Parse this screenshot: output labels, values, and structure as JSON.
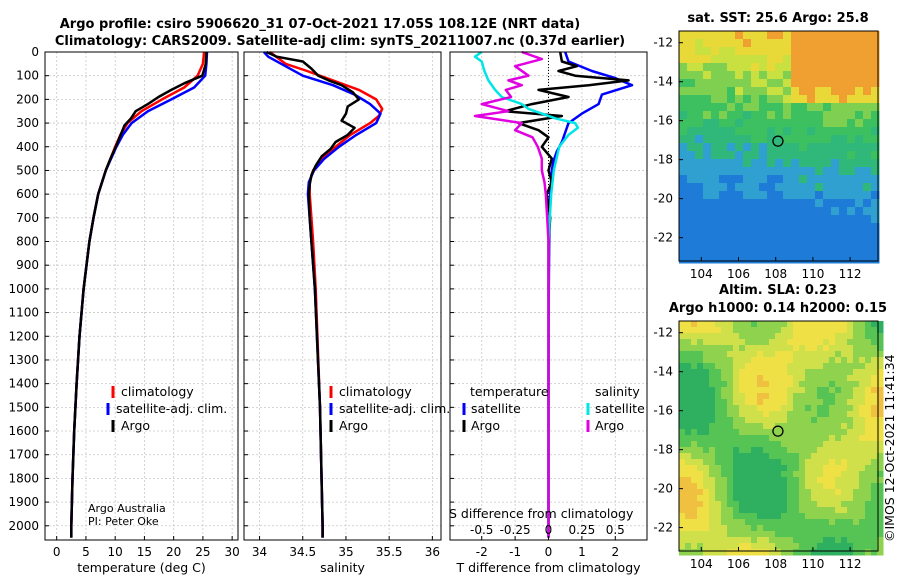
{
  "header": {
    "title_line1": "Argo profile: csiro 5906620_31 07-Oct-2021 17.05S 108.12E (NRT data)",
    "title_line2": "Climatology: CARS2009. Satellite-adj clim: synTS_20211007.nc (0.37d earlier)"
  },
  "colors": {
    "climatology": "#ff0000",
    "satellite": "#0000ff",
    "argo": "#000000",
    "salinity_satellite": "#00e5e5",
    "salinity_argo": "#e000e0"
  },
  "credits": {
    "line1": "Argo Australia",
    "line2": "PI: Peter Oke"
  },
  "watermark": "©IMOS 12-Oct-2021 11:41:34",
  "depth_ticks": [
    0,
    100,
    200,
    300,
    400,
    500,
    600,
    700,
    800,
    900,
    1000,
    1100,
    1200,
    1300,
    1400,
    1500,
    1600,
    1700,
    1800,
    1900,
    2000
  ],
  "chart_data": [
    {
      "type": "line",
      "xlabel": "temperature (deg C)",
      "xticks": [
        0,
        5,
        10,
        15,
        20,
        25,
        30
      ],
      "xlim": [
        -2,
        31
      ],
      "ylim": [
        2060,
        0
      ],
      "legend": [
        "climatology",
        "satellite-adj. clim.",
        "Argo"
      ],
      "series": [
        {
          "name": "climatology",
          "color": "#ff0000",
          "depth": [
            0,
            50,
            100,
            150,
            200,
            250,
            300,
            350,
            400,
            500,
            600,
            700,
            800,
            1000,
            1200,
            1400,
            1600,
            1800,
            2000,
            2050
          ],
          "values": [
            25.2,
            25.0,
            24.1,
            21.8,
            18.0,
            14.5,
            12.1,
            10.9,
            10.0,
            8.4,
            7.1,
            6.3,
            5.6,
            4.6,
            3.9,
            3.4,
            3.0,
            2.7,
            2.5,
            2.5
          ]
        },
        {
          "name": "satellite-adj. clim.",
          "color": "#0000ff",
          "depth": [
            0,
            50,
            100,
            150,
            200,
            250,
            300,
            350,
            400,
            500,
            600,
            700,
            800,
            1000,
            1200,
            1400,
            1600,
            1800,
            2000,
            2050
          ],
          "values": [
            25.7,
            25.6,
            25.4,
            23.5,
            19.6,
            15.6,
            12.8,
            11.3,
            10.2,
            8.4,
            7.1,
            6.3,
            5.6,
            4.6,
            3.9,
            3.4,
            3.0,
            2.7,
            2.5,
            2.5
          ]
        },
        {
          "name": "Argo",
          "color": "#000000",
          "depth": [
            0,
            50,
            100,
            130,
            160,
            190,
            220,
            250,
            280,
            310,
            340,
            370,
            400,
            450,
            500,
            600,
            700,
            800,
            1000,
            1200,
            1400,
            1600,
            1800,
            2000,
            2050
          ],
          "values": [
            25.6,
            25.5,
            24.9,
            22.0,
            19.6,
            17.4,
            15.6,
            13.5,
            12.7,
            11.6,
            11.1,
            10.6,
            10.1,
            9.2,
            8.4,
            7.1,
            6.3,
            5.6,
            4.6,
            3.9,
            3.4,
            3.0,
            2.7,
            2.5,
            2.5
          ]
        }
      ]
    },
    {
      "type": "line",
      "xlabel": "salinity",
      "xticks": [
        34,
        34.5,
        35,
        35.5,
        36
      ],
      "xlim": [
        33.82,
        36.1
      ],
      "ylim": [
        2060,
        0
      ],
      "legend": [
        "climatology",
        "satellite-adj. clim.",
        "Argo"
      ],
      "series": [
        {
          "name": "climatology",
          "color": "#ff0000",
          "depth": [
            0,
            50,
            80,
            120,
            160,
            200,
            240,
            270,
            300,
            350,
            400,
            450,
            500,
            550,
            600,
            700,
            800,
            1000,
            1500,
            2000,
            2050
          ],
          "values": [
            34.12,
            34.3,
            34.55,
            34.85,
            35.15,
            35.35,
            35.42,
            35.38,
            35.28,
            35.05,
            34.88,
            34.72,
            34.62,
            34.58,
            34.58,
            34.6,
            34.62,
            34.65,
            34.7,
            34.73,
            34.73
          ]
        },
        {
          "name": "satellite-adj. clim.",
          "color": "#0000ff",
          "depth": [
            0,
            20,
            60,
            100,
            140,
            180,
            220,
            260,
            300,
            350,
            400,
            450,
            500,
            550,
            600,
            700,
            800,
            1000,
            1500,
            2000,
            2050
          ],
          "values": [
            34.05,
            34.1,
            34.3,
            34.5,
            34.85,
            35.1,
            35.28,
            35.4,
            35.35,
            35.12,
            34.92,
            34.75,
            34.63,
            34.57,
            34.56,
            34.58,
            34.6,
            34.64,
            34.7,
            34.73,
            34.73
          ]
        },
        {
          "name": "Argo",
          "color": "#000000",
          "depth": [
            0,
            20,
            40,
            70,
            100,
            120,
            140,
            170,
            200,
            230,
            260,
            290,
            320,
            350,
            380,
            410,
            440,
            480,
            520,
            560,
            600,
            700,
            800,
            1000,
            1500,
            2000,
            2050
          ],
          "values": [
            34.08,
            34.2,
            34.5,
            34.6,
            34.68,
            34.8,
            34.95,
            35.08,
            35.15,
            35.02,
            35.0,
            34.95,
            35.1,
            35.02,
            34.88,
            34.82,
            34.72,
            34.65,
            34.6,
            34.58,
            34.57,
            34.58,
            34.6,
            34.64,
            34.7,
            34.73,
            34.73
          ]
        }
      ]
    },
    {
      "type": "line",
      "xlabel": "T difference from climatology",
      "xlabel_top": "S difference from climatology",
      "xticks": [
        -2,
        -1,
        0,
        1,
        2
      ],
      "xlim": [
        -2.95,
        2.95
      ],
      "s_ticks": [
        -0.5,
        -0.25,
        0,
        0.25,
        0.5
      ],
      "s_tick_labels": [
        "-0.5",
        "-0.25",
        "0",
        "0.25",
        "0.5"
      ],
      "ylim": [
        2060,
        0
      ],
      "legend_group1": "temperature",
      "legend_group2": "salinity",
      "legend": [
        "satellite",
        "Argo",
        "satellite",
        "Argo"
      ],
      "series": [
        {
          "name": "T satellite",
          "color": "#0000ff",
          "depth": [
            0,
            40,
            80,
            110,
            140,
            180,
            220,
            260,
            300,
            340,
            380,
            420,
            460,
            500,
            600,
            800,
            1000,
            1500,
            2000,
            2050
          ],
          "values": [
            0.5,
            0.6,
            1.3,
            2.0,
            2.5,
            1.6,
            1.5,
            1.0,
            0.6,
            0.5,
            0.4,
            0.25,
            0.15,
            0.1,
            0.05,
            0.02,
            0.01,
            0.0,
            0.0,
            0.0
          ]
        },
        {
          "name": "T Argo",
          "color": "#000000",
          "depth": [
            0,
            40,
            60,
            80,
            100,
            120,
            140,
            160,
            190,
            220,
            250,
            270,
            300,
            330,
            360,
            400,
            450,
            500,
            550,
            600,
            650,
            700,
            800,
            1000,
            1500,
            2000,
            2050
          ],
          "values": [
            0.35,
            0.4,
            0.85,
            0.3,
            0.8,
            2.4,
            1.2,
            -0.3,
            0.6,
            -0.5,
            -1.3,
            0.4,
            -0.9,
            -0.3,
            0.0,
            -0.2,
            0.1,
            0.0,
            0.1,
            -0.05,
            0.0,
            0.05,
            0.0,
            0.0,
            0.0,
            0.0,
            0.0
          ]
        },
        {
          "name": "S satellite",
          "color": "#00e5e5",
          "depth": [
            0,
            20,
            40,
            80,
            120,
            160,
            190,
            220,
            240,
            260,
            280,
            300,
            320,
            350,
            400,
            500,
            600,
            700,
            800,
            1000,
            1500,
            2000,
            2050
          ],
          "values": [
            -0.5,
            -0.55,
            -0.5,
            -0.48,
            -0.45,
            -0.4,
            -0.35,
            -0.2,
            -0.15,
            -0.05,
            0.05,
            0.2,
            0.22,
            0.15,
            0.08,
            0.04,
            0.02,
            0.01,
            0.0,
            0.0,
            0.0,
            0.0,
            0.0
          ]
        },
        {
          "name": "S Argo",
          "color": "#e000e0",
          "depth": [
            0,
            30,
            60,
            100,
            120,
            140,
            160,
            190,
            220,
            250,
            270,
            300,
            330,
            360,
            400,
            450,
            500,
            550,
            600,
            700,
            800,
            1000,
            1500,
            2000,
            2050
          ],
          "values": [
            -0.2,
            -0.05,
            -0.25,
            -0.15,
            -0.3,
            -0.2,
            -0.32,
            -0.28,
            -0.5,
            -0.3,
            -0.55,
            -0.2,
            -0.25,
            -0.12,
            -0.08,
            -0.05,
            -0.05,
            -0.03,
            -0.02,
            -0.01,
            0.0,
            0.0,
            0.0,
            0.0,
            0.0
          ]
        }
      ]
    },
    {
      "type": "heatmap",
      "title": "sat. SST: 25.6 Argo: 25.8",
      "xticks": [
        104,
        106,
        108,
        110,
        112
      ],
      "yticks": [
        -12,
        -14,
        -16,
        -18,
        -20,
        -22
      ],
      "xlim": [
        102.8,
        113.5
      ],
      "ylim": [
        -23.2,
        -11.4
      ],
      "argo_position": {
        "lon": 108.12,
        "lat": -17.05
      }
    },
    {
      "type": "heatmap",
      "title_line1": "Altim. SLA: 0.23",
      "title_line2": "Argo h1000: 0.14 h2000: 0.15",
      "xticks": [
        104,
        106,
        108,
        110,
        112
      ],
      "yticks": [
        -12,
        -14,
        -16,
        -18,
        -20,
        -22
      ],
      "xlim": [
        102.8,
        113.5
      ],
      "ylim": [
        -23.2,
        -11.4
      ],
      "argo_position": {
        "lon": 108.12,
        "lat": -17.05
      }
    }
  ]
}
